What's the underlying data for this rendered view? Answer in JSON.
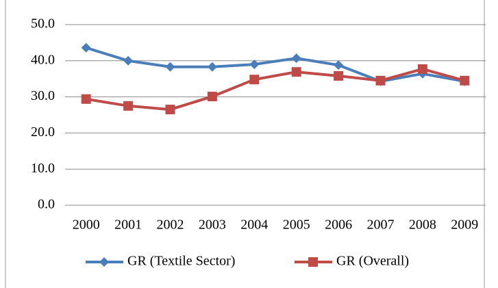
{
  "chart_data": {
    "type": "line",
    "categories": [
      "2000",
      "2001",
      "2002",
      "2003",
      "2004",
      "2005",
      "2006",
      "2007",
      "2008",
      "2009"
    ],
    "series": [
      {
        "name": "GR (Textile Sector)",
        "color": "#4a7ebb",
        "marker": "diamond",
        "values": [
          43.6,
          40.0,
          38.3,
          38.3,
          39.0,
          40.7,
          38.8,
          34.3,
          36.4,
          34.3
        ]
      },
      {
        "name": "GR (Overall)",
        "color": "#be4b48",
        "marker": "square",
        "values": [
          29.4,
          27.5,
          26.5,
          30.1,
          34.8,
          36.9,
          35.8,
          34.5,
          37.7,
          34.5
        ]
      }
    ],
    "ylim": [
      0,
      50
    ],
    "yticks": [
      {
        "value": 0,
        "label": "0.0"
      },
      {
        "value": 10,
        "label": "10.0"
      },
      {
        "value": 20,
        "label": "20.0"
      },
      {
        "value": 30,
        "label": "30.0"
      },
      {
        "value": 40,
        "label": "40.0"
      },
      {
        "value": 50,
        "label": "50.0"
      }
    ],
    "grid": true,
    "legend": "bottom"
  }
}
